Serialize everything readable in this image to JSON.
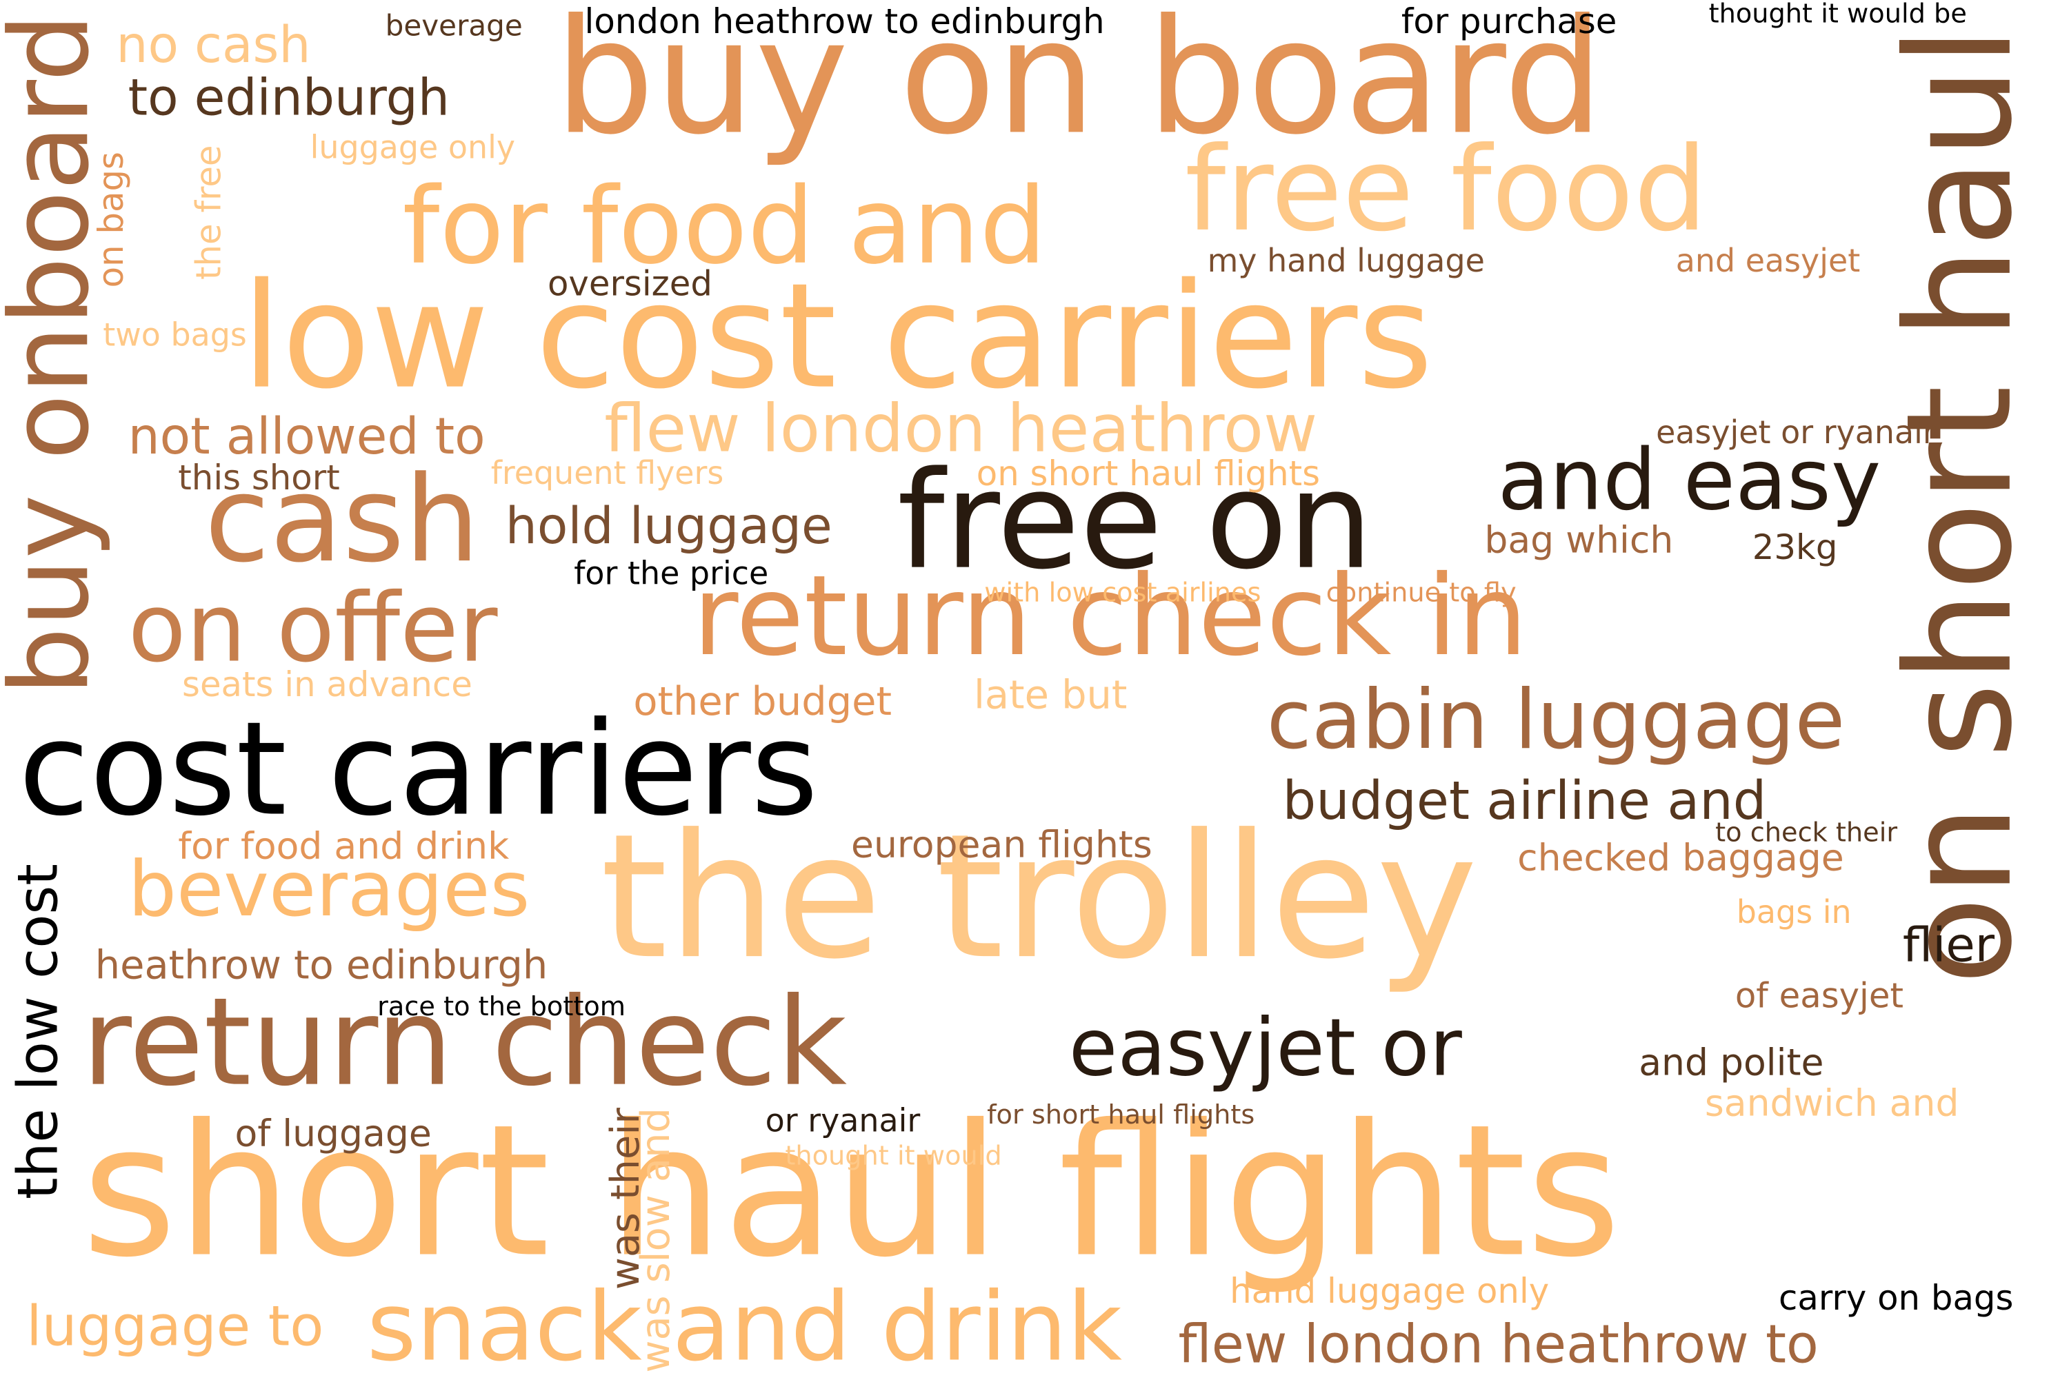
{
  "title": "word cloud",
  "palette": {
    "c1": "#fdba6e",
    "c2": "#fec887",
    "c3": "#e39457",
    "c4": "#c67f4d",
    "c5": "#a3673f",
    "c6": "#7a4e2f",
    "c7": "#56371f",
    "c8": "#281a0f",
    "c9": "#000000"
  },
  "words": [
    {
      "text": "cost carriers",
      "weight": 1
    },
    {
      "text": "the trolley",
      "weight": 0.95
    },
    {
      "text": "short haul flights",
      "weight": 0.93
    },
    {
      "text": "buy on board",
      "weight": 0.9
    },
    {
      "text": "low cost carriers",
      "weight": 0.9
    },
    {
      "text": "on short haul",
      "weight": 0.88
    },
    {
      "text": "return check",
      "weight": 0.85
    },
    {
      "text": "free on",
      "weight": 0.8
    },
    {
      "text": "return check in",
      "weight": 0.75
    },
    {
      "text": "for food and",
      "weight": 0.72
    },
    {
      "text": "free food",
      "weight": 0.72
    },
    {
      "text": "cash",
      "weight": 0.68
    },
    {
      "text": "on offer",
      "weight": 0.64
    },
    {
      "text": "buy onboard",
      "weight": 0.7
    },
    {
      "text": "snack and drink",
      "weight": 0.6
    },
    {
      "text": "cabin luggage",
      "weight": 0.55
    },
    {
      "text": "easyjet or",
      "weight": 0.55
    },
    {
      "text": "and easy",
      "weight": 0.54
    },
    {
      "text": "flew london heathrow",
      "weight": 0.5
    },
    {
      "text": "beverages",
      "weight": 0.5
    },
    {
      "text": "flew london heathrow to",
      "weight": 0.42
    },
    {
      "text": "the low cost",
      "weight": 0.45
    },
    {
      "text": "budget airline and",
      "weight": 0.4
    },
    {
      "text": "luggage to",
      "weight": 0.4
    },
    {
      "text": "not allowed to",
      "weight": 0.38
    },
    {
      "text": "hold luggage",
      "weight": 0.38
    },
    {
      "text": "to edinburgh",
      "weight": 0.38
    },
    {
      "text": "heathrow to edinburgh",
      "weight": 0.35
    },
    {
      "text": "was slow and",
      "weight": 0.33
    },
    {
      "text": "was their",
      "weight": 0.33
    },
    {
      "text": "no cash",
      "weight": 0.34
    },
    {
      "text": "london heathrow to edinburgh",
      "weight": 0.3
    },
    {
      "text": "for purchase",
      "weight": 0.3
    },
    {
      "text": "on short haul flights",
      "weight": 0.3
    },
    {
      "text": "european flights",
      "weight": 0.3
    },
    {
      "text": "checked baggage",
      "weight": 0.3
    },
    {
      "text": "for food and drink",
      "weight": 0.3
    },
    {
      "text": "flier",
      "weight": 0.32
    },
    {
      "text": "other budget",
      "weight": 0.3
    },
    {
      "text": "seats in advance",
      "weight": 0.3
    },
    {
      "text": "late but",
      "weight": 0.3
    },
    {
      "text": "bag which",
      "weight": 0.3
    },
    {
      "text": "and polite",
      "weight": 0.3
    },
    {
      "text": "sandwich and",
      "weight": 0.3
    },
    {
      "text": "of easyjet",
      "weight": 0.3
    },
    {
      "text": "hand luggage only",
      "weight": 0.3
    },
    {
      "text": "carry on bags",
      "weight": 0.3
    },
    {
      "text": "of luggage",
      "weight": 0.3
    },
    {
      "text": "on bags",
      "weight": 0.3
    },
    {
      "text": "the free",
      "weight": 0.28
    },
    {
      "text": "frequent flyers",
      "weight": 0.28
    },
    {
      "text": "this short",
      "weight": 0.28
    },
    {
      "text": "oversized",
      "weight": 0.28
    },
    {
      "text": "my hand luggage",
      "weight": 0.28
    },
    {
      "text": "and easyjet",
      "weight": 0.28
    },
    {
      "text": "easyjet or ryanair",
      "weight": 0.28
    },
    {
      "text": "or ryanair",
      "weight": 0.26
    },
    {
      "text": "for the price",
      "weight": 0.26
    },
    {
      "text": "two bags",
      "weight": 0.26
    },
    {
      "text": "luggage only",
      "weight": 0.26
    },
    {
      "text": "bags in",
      "weight": 0.26
    },
    {
      "text": "thought it would",
      "weight": 0.24
    },
    {
      "text": "thought it would be",
      "weight": 0.24
    },
    {
      "text": "race to the bottom",
      "weight": 0.24
    },
    {
      "text": "23kg",
      "weight": 0.26
    },
    {
      "text": "beverage",
      "weight": 0.24
    },
    {
      "text": "with low cost airlines",
      "weight": 0.24
    },
    {
      "text": "continue to fly",
      "weight": 0.24
    },
    {
      "text": "for short haul flights",
      "weight": 0.24
    },
    {
      "text": "to check their",
      "weight": 0.24
    }
  ]
}
